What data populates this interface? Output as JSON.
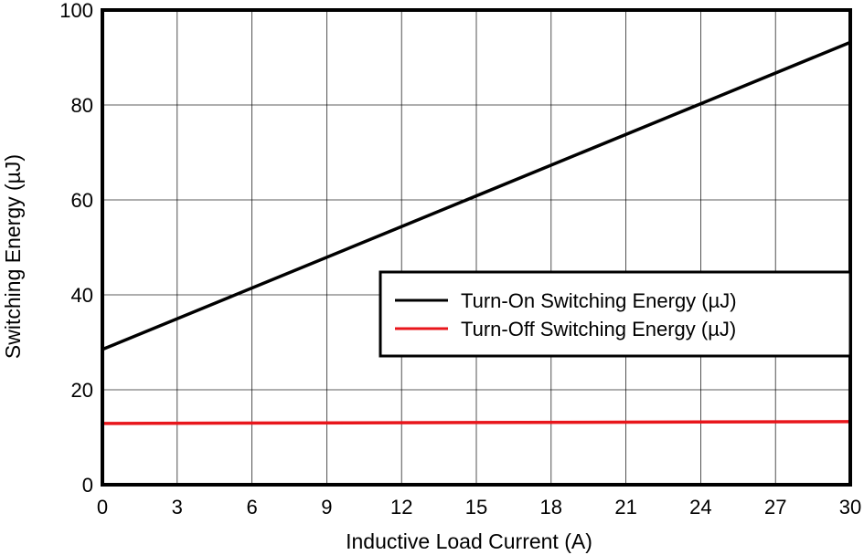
{
  "chart_data": {
    "type": "line",
    "title": "",
    "xlabel": "Inductive Load Current (A)",
    "ylabel": "Switching Energy (µJ)",
    "xlim": [
      0,
      30
    ],
    "ylim": [
      0,
      100
    ],
    "xticks": [
      0,
      3,
      6,
      9,
      12,
      15,
      18,
      21,
      24,
      27,
      30
    ],
    "yticks": [
      0,
      20,
      40,
      60,
      80,
      100
    ],
    "grid": true,
    "legend_position": "center-right",
    "series": [
      {
        "name": "Turn-On Switching Energy (µJ)",
        "color": "#000000",
        "x": [
          0,
          30
        ],
        "y": [
          28.5,
          93.2
        ]
      },
      {
        "name": "Turn-Off Switching Energy (µJ)",
        "color": "#e8161b",
        "x": [
          0,
          30
        ],
        "y": [
          12.9,
          13.3
        ]
      }
    ]
  }
}
